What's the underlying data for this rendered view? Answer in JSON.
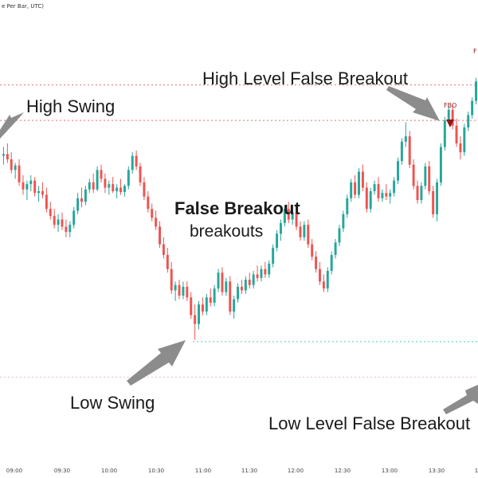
{
  "chart_data": {
    "type": "candlestick",
    "header_text": "e Per Bar, UTC)",
    "x_ticks": [
      "09:00",
      "09:30",
      "10:00",
      "10:30",
      "11:00",
      "11:30",
      "12:00",
      "12:30",
      "13:00",
      "13:30",
      "1"
    ],
    "annotations": {
      "title": "False Breakout",
      "subtitle": "breakouts",
      "high_swing": "High Swing",
      "high_level_false_breakout": "High Level False Breakout",
      "low_swing": "Low Swing",
      "low_level_false_breakout": "Low Level False Breakout",
      "fbo_marker": "FBO",
      "fbo_marker_partial": "F"
    },
    "levels": {
      "high_swing": 97,
      "high_alt": 93,
      "low_swing": 68,
      "low_alt": 64
    },
    "y_range": [
      58,
      103
    ],
    "colors": {
      "up": "#26a69a",
      "down": "#ef5350",
      "fbo": "#8b1a1a",
      "arrow": "#8c8c8c",
      "resistance": "#e57373",
      "support": "#4dd0c4"
    },
    "candles": [
      {
        "o": 89.0,
        "h": 90.0,
        "l": 88.0,
        "c": 89.2
      },
      {
        "o": 89.2,
        "h": 90.4,
        "l": 88.2,
        "c": 88.6
      },
      {
        "o": 88.6,
        "h": 89.4,
        "l": 87.0,
        "c": 87.4
      },
      {
        "o": 87.4,
        "h": 88.2,
        "l": 86.4,
        "c": 87.9
      },
      {
        "o": 87.9,
        "h": 88.6,
        "l": 85.6,
        "c": 86.0
      },
      {
        "o": 86.0,
        "h": 86.8,
        "l": 84.6,
        "c": 85.2
      },
      {
        "o": 85.2,
        "h": 86.2,
        "l": 84.0,
        "c": 85.8
      },
      {
        "o": 85.8,
        "h": 86.8,
        "l": 85.0,
        "c": 86.2
      },
      {
        "o": 86.2,
        "h": 86.6,
        "l": 84.4,
        "c": 84.8
      },
      {
        "o": 84.8,
        "h": 85.6,
        "l": 83.8,
        "c": 85.0
      },
      {
        "o": 85.0,
        "h": 86.0,
        "l": 84.2,
        "c": 84.6
      },
      {
        "o": 84.6,
        "h": 85.4,
        "l": 82.6,
        "c": 83.0
      },
      {
        "o": 83.0,
        "h": 83.8,
        "l": 81.8,
        "c": 82.2
      },
      {
        "o": 82.2,
        "h": 83.0,
        "l": 80.8,
        "c": 81.2
      },
      {
        "o": 81.2,
        "h": 82.4,
        "l": 80.4,
        "c": 81.8
      },
      {
        "o": 81.8,
        "h": 82.6,
        "l": 80.6,
        "c": 81.0
      },
      {
        "o": 81.0,
        "h": 81.8,
        "l": 79.8,
        "c": 80.4
      },
      {
        "o": 80.4,
        "h": 81.6,
        "l": 79.8,
        "c": 81.2
      },
      {
        "o": 81.2,
        "h": 83.2,
        "l": 80.8,
        "c": 82.8
      },
      {
        "o": 82.8,
        "h": 84.8,
        "l": 82.4,
        "c": 84.2
      },
      {
        "o": 84.2,
        "h": 85.4,
        "l": 83.2,
        "c": 83.8
      },
      {
        "o": 83.8,
        "h": 85.6,
        "l": 83.4,
        "c": 85.2
      },
      {
        "o": 85.2,
        "h": 86.4,
        "l": 84.8,
        "c": 86.0
      },
      {
        "o": 86.0,
        "h": 87.0,
        "l": 84.8,
        "c": 85.2
      },
      {
        "o": 85.2,
        "h": 87.8,
        "l": 85.0,
        "c": 87.4
      },
      {
        "o": 87.4,
        "h": 88.0,
        "l": 86.0,
        "c": 86.4
      },
      {
        "o": 86.4,
        "h": 87.0,
        "l": 84.8,
        "c": 85.4
      },
      {
        "o": 85.4,
        "h": 86.2,
        "l": 84.6,
        "c": 85.8
      },
      {
        "o": 85.8,
        "h": 86.6,
        "l": 84.8,
        "c": 85.0
      },
      {
        "o": 85.0,
        "h": 85.8,
        "l": 84.2,
        "c": 85.4
      },
      {
        "o": 85.4,
        "h": 86.4,
        "l": 84.6,
        "c": 84.9
      },
      {
        "o": 84.9,
        "h": 85.8,
        "l": 84.4,
        "c": 85.6
      },
      {
        "o": 85.6,
        "h": 87.8,
        "l": 85.2,
        "c": 87.4
      },
      {
        "o": 87.4,
        "h": 89.4,
        "l": 87.0,
        "c": 89.0
      },
      {
        "o": 89.0,
        "h": 89.6,
        "l": 87.4,
        "c": 87.8
      },
      {
        "o": 87.8,
        "h": 88.2,
        "l": 85.6,
        "c": 86.0
      },
      {
        "o": 86.0,
        "h": 86.6,
        "l": 84.0,
        "c": 84.4
      },
      {
        "o": 84.4,
        "h": 85.0,
        "l": 82.6,
        "c": 83.0
      },
      {
        "o": 83.0,
        "h": 83.6,
        "l": 81.6,
        "c": 82.0
      },
      {
        "o": 82.0,
        "h": 82.8,
        "l": 80.6,
        "c": 81.0
      },
      {
        "o": 81.0,
        "h": 81.6,
        "l": 78.6,
        "c": 79.0
      },
      {
        "o": 79.0,
        "h": 79.8,
        "l": 77.4,
        "c": 77.8
      },
      {
        "o": 77.8,
        "h": 78.6,
        "l": 75.8,
        "c": 76.2
      },
      {
        "o": 76.2,
        "h": 77.0,
        "l": 73.4,
        "c": 73.8
      },
      {
        "o": 73.8,
        "h": 74.8,
        "l": 72.6,
        "c": 74.4
      },
      {
        "o": 74.4,
        "h": 75.0,
        "l": 72.8,
        "c": 73.2
      },
      {
        "o": 73.2,
        "h": 74.8,
        "l": 72.8,
        "c": 74.2
      },
      {
        "o": 74.2,
        "h": 74.8,
        "l": 72.6,
        "c": 73.0
      },
      {
        "o": 73.0,
        "h": 73.6,
        "l": 70.6,
        "c": 71.0
      },
      {
        "o": 71.0,
        "h": 72.2,
        "l": 68.2,
        "c": 70.0
      },
      {
        "o": 70.0,
        "h": 72.6,
        "l": 69.4,
        "c": 72.2
      },
      {
        "o": 72.2,
        "h": 73.0,
        "l": 71.0,
        "c": 71.4
      },
      {
        "o": 71.4,
        "h": 73.4,
        "l": 71.0,
        "c": 73.0
      },
      {
        "o": 73.0,
        "h": 74.0,
        "l": 72.0,
        "c": 72.4
      },
      {
        "o": 72.4,
        "h": 74.4,
        "l": 72.0,
        "c": 74.0
      },
      {
        "o": 74.0,
        "h": 76.2,
        "l": 73.6,
        "c": 75.8
      },
      {
        "o": 75.8,
        "h": 76.4,
        "l": 73.2,
        "c": 73.6
      },
      {
        "o": 73.6,
        "h": 75.2,
        "l": 73.2,
        "c": 74.8
      },
      {
        "o": 74.8,
        "h": 75.4,
        "l": 71.0,
        "c": 71.4
      },
      {
        "o": 71.4,
        "h": 73.2,
        "l": 70.6,
        "c": 72.8
      },
      {
        "o": 72.8,
        "h": 74.6,
        "l": 72.4,
        "c": 74.2
      },
      {
        "o": 74.2,
        "h": 75.0,
        "l": 73.4,
        "c": 73.8
      },
      {
        "o": 73.8,
        "h": 75.4,
        "l": 73.4,
        "c": 75.0
      },
      {
        "o": 75.0,
        "h": 75.8,
        "l": 74.0,
        "c": 74.4
      },
      {
        "o": 74.4,
        "h": 76.0,
        "l": 74.0,
        "c": 75.6
      },
      {
        "o": 75.6,
        "h": 76.6,
        "l": 74.8,
        "c": 75.2
      },
      {
        "o": 75.2,
        "h": 76.6,
        "l": 74.8,
        "c": 76.2
      },
      {
        "o": 76.2,
        "h": 77.0,
        "l": 75.2,
        "c": 75.6
      },
      {
        "o": 75.6,
        "h": 77.2,
        "l": 75.2,
        "c": 76.8
      },
      {
        "o": 76.8,
        "h": 79.0,
        "l": 76.4,
        "c": 78.6
      },
      {
        "o": 78.6,
        "h": 80.6,
        "l": 78.2,
        "c": 80.2
      },
      {
        "o": 80.2,
        "h": 81.8,
        "l": 79.4,
        "c": 81.4
      },
      {
        "o": 81.4,
        "h": 83.4,
        "l": 81.0,
        "c": 83.0
      },
      {
        "o": 83.0,
        "h": 83.8,
        "l": 81.4,
        "c": 81.8
      },
      {
        "o": 81.8,
        "h": 83.0,
        "l": 81.2,
        "c": 82.6
      },
      {
        "o": 82.6,
        "h": 83.2,
        "l": 80.6,
        "c": 81.0
      },
      {
        "o": 81.0,
        "h": 81.6,
        "l": 79.4,
        "c": 79.8
      },
      {
        "o": 79.8,
        "h": 81.6,
        "l": 79.4,
        "c": 81.2
      },
      {
        "o": 81.2,
        "h": 81.8,
        "l": 78.6,
        "c": 79.0
      },
      {
        "o": 79.0,
        "h": 79.6,
        "l": 77.2,
        "c": 77.6
      },
      {
        "o": 77.6,
        "h": 78.2,
        "l": 75.8,
        "c": 76.2
      },
      {
        "o": 76.2,
        "h": 77.0,
        "l": 74.4,
        "c": 74.8
      },
      {
        "o": 74.8,
        "h": 75.6,
        "l": 73.6,
        "c": 74.0
      },
      {
        "o": 74.0,
        "h": 76.4,
        "l": 73.6,
        "c": 76.0
      },
      {
        "o": 76.0,
        "h": 78.2,
        "l": 75.6,
        "c": 77.8
      },
      {
        "o": 77.8,
        "h": 79.6,
        "l": 77.4,
        "c": 79.2
      },
      {
        "o": 79.2,
        "h": 81.2,
        "l": 78.8,
        "c": 80.8
      },
      {
        "o": 80.8,
        "h": 82.8,
        "l": 80.4,
        "c": 82.4
      },
      {
        "o": 82.4,
        "h": 84.6,
        "l": 82.0,
        "c": 84.2
      },
      {
        "o": 84.2,
        "h": 86.4,
        "l": 83.8,
        "c": 86.0
      },
      {
        "o": 86.0,
        "h": 86.8,
        "l": 84.2,
        "c": 84.6
      },
      {
        "o": 84.6,
        "h": 87.6,
        "l": 84.2,
        "c": 87.2
      },
      {
        "o": 87.2,
        "h": 88.0,
        "l": 85.0,
        "c": 85.4
      },
      {
        "o": 85.4,
        "h": 86.0,
        "l": 82.6,
        "c": 83.0
      },
      {
        "o": 83.0,
        "h": 85.4,
        "l": 82.6,
        "c": 85.0
      },
      {
        "o": 85.0,
        "h": 86.2,
        "l": 84.6,
        "c": 85.8
      },
      {
        "o": 85.8,
        "h": 86.6,
        "l": 83.8,
        "c": 84.2
      },
      {
        "o": 84.2,
        "h": 85.2,
        "l": 83.8,
        "c": 84.8
      },
      {
        "o": 84.8,
        "h": 85.8,
        "l": 84.0,
        "c": 84.4
      },
      {
        "o": 84.4,
        "h": 85.2,
        "l": 83.6,
        "c": 84.8
      },
      {
        "o": 84.8,
        "h": 86.6,
        "l": 84.4,
        "c": 86.2
      },
      {
        "o": 86.2,
        "h": 88.8,
        "l": 85.8,
        "c": 88.4
      },
      {
        "o": 88.4,
        "h": 91.0,
        "l": 88.0,
        "c": 90.6
      },
      {
        "o": 90.6,
        "h": 92.8,
        "l": 90.0,
        "c": 91.2
      },
      {
        "o": 91.2,
        "h": 91.8,
        "l": 87.6,
        "c": 88.0
      },
      {
        "o": 88.0,
        "h": 88.6,
        "l": 85.2,
        "c": 85.6
      },
      {
        "o": 85.6,
        "h": 86.2,
        "l": 83.6,
        "c": 84.0
      },
      {
        "o": 84.0,
        "h": 86.0,
        "l": 83.6,
        "c": 85.6
      },
      {
        "o": 85.6,
        "h": 88.2,
        "l": 85.2,
        "c": 87.8
      },
      {
        "o": 87.8,
        "h": 88.4,
        "l": 84.6,
        "c": 85.0
      },
      {
        "o": 85.0,
        "h": 85.6,
        "l": 82.0,
        "c": 82.4
      },
      {
        "o": 82.4,
        "h": 86.4,
        "l": 81.6,
        "c": 86.0
      },
      {
        "o": 86.0,
        "h": 90.4,
        "l": 85.6,
        "c": 90.0
      },
      {
        "o": 90.0,
        "h": 93.4,
        "l": 89.6,
        "c": 93.0
      },
      {
        "o": 93.0,
        "h": 94.6,
        "l": 92.6,
        "c": 94.2
      },
      {
        "o": 94.2,
        "h": 94.8,
        "l": 92.0,
        "c": 92.4
      },
      {
        "o": 92.4,
        "h": 93.2,
        "l": 90.0,
        "c": 90.4
      },
      {
        "o": 90.4,
        "h": 91.2,
        "l": 88.6,
        "c": 89.4
      },
      {
        "o": 89.4,
        "h": 92.6,
        "l": 89.0,
        "c": 92.2
      },
      {
        "o": 92.2,
        "h": 94.0,
        "l": 91.8,
        "c": 93.6
      },
      {
        "o": 93.6,
        "h": 95.6,
        "l": 93.2,
        "c": 95.2
      },
      {
        "o": 95.2,
        "h": 97.8,
        "l": 94.8,
        "c": 97.4
      }
    ]
  }
}
